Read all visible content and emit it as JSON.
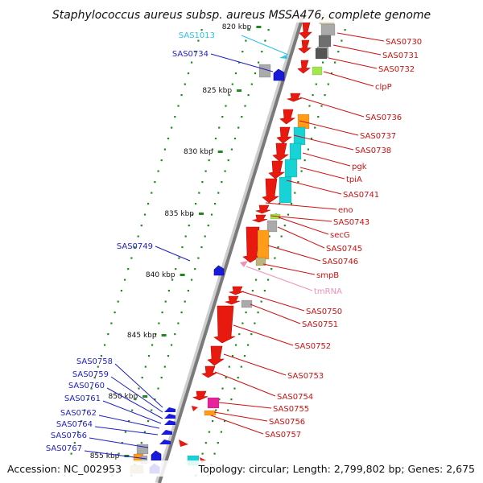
{
  "title": "Staphylococcus aureus subsp. aureus MSSA476, complete genome",
  "accession": "Accession: NC_002953",
  "topology": "Topology: circular; Length: 2,799,802 bp; Genes: 2,675",
  "colors": {
    "red": "#e8190f",
    "blue": "#1a1adb",
    "blue_label": "#1f1fc0",
    "red_label": "#cc1111",
    "cyan": "#29c4e8",
    "pink": "#f08fb8",
    "cyan_block": "#17d3d6",
    "orange": "#ff9c1a",
    "lime": "#a3e84a",
    "gray": "#aaaaaa",
    "dark_gray": "#6f6f6f",
    "magenta": "#e8229a",
    "tan": "#bfb37a",
    "tick": "#1e8a1e",
    "backbone": "#7a7a7a"
  },
  "kbp_ticks": [
    "820 kbp",
    "825 kbp",
    "830 kbp",
    "835 kbp",
    "840 kbp",
    "845 kbp",
    "850 kbp",
    "855 kbp"
  ],
  "features": [
    {
      "label": "SAS0730",
      "strand": "forward",
      "type": "gene"
    },
    {
      "label": "SAS0731",
      "strand": "forward",
      "type": "gene"
    },
    {
      "label": "SAS0732",
      "strand": "forward",
      "type": "gene"
    },
    {
      "label": "clpP",
      "strand": "forward",
      "type": "gene"
    },
    {
      "label": "SAS1013",
      "strand": "reverse",
      "type": "misc"
    },
    {
      "label": "SAS0734",
      "strand": "reverse",
      "type": "gene"
    },
    {
      "label": "SAS0736",
      "strand": "forward",
      "type": "gene"
    },
    {
      "label": "SAS0737",
      "strand": "forward",
      "type": "gene"
    },
    {
      "label": "SAS0738",
      "strand": "forward",
      "type": "gene"
    },
    {
      "label": "pgk",
      "strand": "forward",
      "type": "gene"
    },
    {
      "label": "tpiA",
      "strand": "forward",
      "type": "gene"
    },
    {
      "label": "SAS0741",
      "strand": "forward",
      "type": "gene"
    },
    {
      "label": "eno",
      "strand": "forward",
      "type": "gene"
    },
    {
      "label": "SAS0743",
      "strand": "forward",
      "type": "gene"
    },
    {
      "label": "secG",
      "strand": "forward",
      "type": "gene"
    },
    {
      "label": "SAS0745",
      "strand": "forward",
      "type": "gene"
    },
    {
      "label": "SAS0746",
      "strand": "forward",
      "type": "gene"
    },
    {
      "label": "smpB",
      "strand": "forward",
      "type": "gene"
    },
    {
      "label": "tmRNA",
      "strand": "forward",
      "type": "tmRNA"
    },
    {
      "label": "SAS0749",
      "strand": "reverse",
      "type": "gene"
    },
    {
      "label": "SAS0750",
      "strand": "forward",
      "type": "gene"
    },
    {
      "label": "SAS0751",
      "strand": "forward",
      "type": "gene"
    },
    {
      "label": "SAS0752",
      "strand": "forward",
      "type": "gene"
    },
    {
      "label": "SAS0753",
      "strand": "forward",
      "type": "gene"
    },
    {
      "label": "SAS0754",
      "strand": "forward",
      "type": "gene"
    },
    {
      "label": "SAS0755",
      "strand": "forward",
      "type": "gene"
    },
    {
      "label": "SAS0756",
      "strand": "forward",
      "type": "gene"
    },
    {
      "label": "SAS0757",
      "strand": "forward",
      "type": "gene"
    },
    {
      "label": "SAS0758",
      "strand": "reverse",
      "type": "gene"
    },
    {
      "label": "SAS0759",
      "strand": "reverse",
      "type": "gene"
    },
    {
      "label": "SAS0760",
      "strand": "reverse",
      "type": "gene"
    },
    {
      "label": "SAS0761",
      "strand": "reverse",
      "type": "gene"
    },
    {
      "label": "SAS0762",
      "strand": "reverse",
      "type": "gene"
    },
    {
      "label": "SAS0764",
      "strand": "reverse",
      "type": "gene"
    },
    {
      "label": "SAS0766",
      "strand": "reverse",
      "type": "gene"
    },
    {
      "label": "SAS0767",
      "strand": "reverse",
      "type": "gene"
    }
  ]
}
